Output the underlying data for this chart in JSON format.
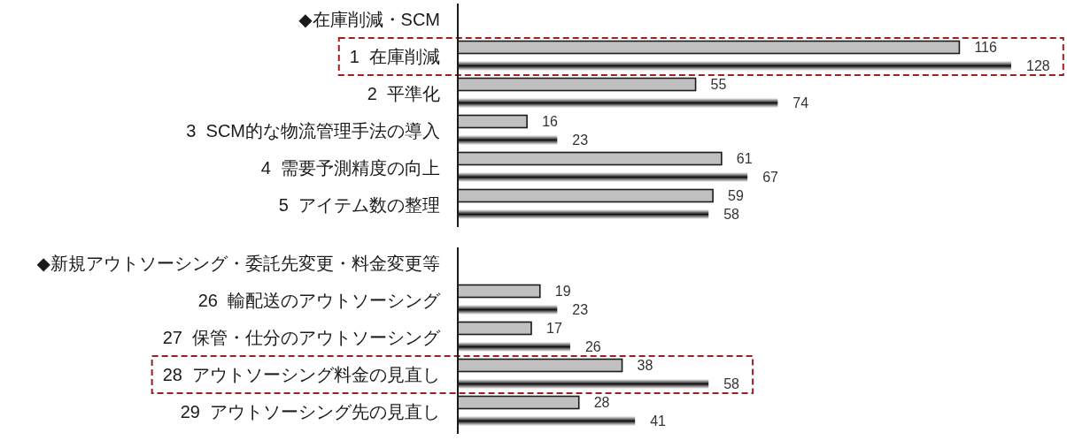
{
  "chart_data": [
    {
      "type": "bar",
      "orientation": "horizontal",
      "categories": [
        "◆在庫削減・SCM",
        "1  在庫削減",
        "2  平準化",
        "3  SCM的な物流管理手法の導入",
        "4  需要予測精度の向上",
        "5  アイテム数の整理"
      ],
      "series": [
        {
          "color": "#c0c0c0",
          "values": [
            null,
            116,
            55,
            16,
            61,
            59
          ]
        },
        {
          "color": "#111111",
          "values": [
            null,
            128,
            74,
            23,
            67,
            58
          ]
        }
      ],
      "data_labels": true,
      "tick_labels": "y",
      "bands": [
        {
          "axis": "y",
          "from": "1  在庫削減",
          "to": "1  在庫削減",
          "color": "#9b2020"
        }
      ]
    },
    {
      "type": "bar",
      "orientation": "horizontal",
      "categories": [
        "◆新規アウトソーシング・委託先変更・料金変更等",
        "26  輸配送のアウトソーシング",
        "27  保管・仕分のアウトソーシング",
        "28  アウトソーシング料金の見直し",
        "29  アウトソーシング先の見直し"
      ],
      "series": [
        {
          "color": "#c0c0c0",
          "values": [
            null,
            19,
            17,
            38,
            28
          ]
        },
        {
          "color": "#111111",
          "values": [
            null,
            23,
            26,
            58,
            41
          ]
        }
      ],
      "data_labels": true,
      "tick_labels": "y",
      "bands": [
        {
          "axis": "y",
          "from": "28  アウトソーシング料金の見直し",
          "to": "28  アウトソーシング料金の見直し",
          "color": "#9b2020"
        }
      ]
    }
  ]
}
